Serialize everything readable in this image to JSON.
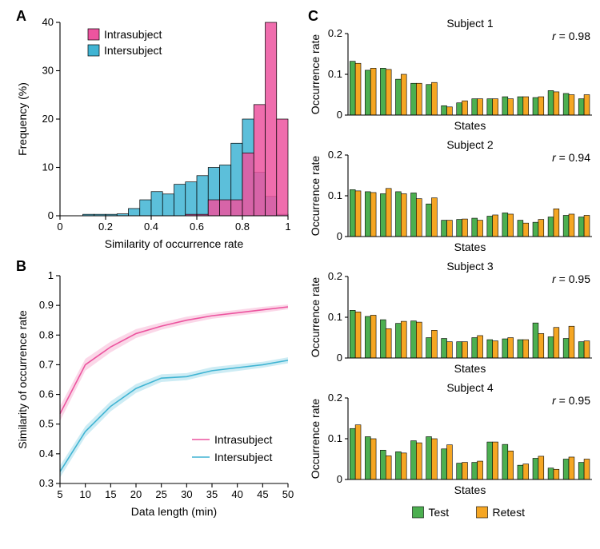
{
  "panelA": {
    "label": "A",
    "type": "histogram",
    "xlabel": "Similarity of occurrence rate",
    "ylabel": "Frequency (%)",
    "xlim": [
      0,
      1
    ],
    "ylim": [
      0,
      40
    ],
    "xtick_step": 0.2,
    "ytick_step": 10,
    "bin_width": 0.05,
    "series": [
      {
        "name": "Intrasubject",
        "color": "#ec549f",
        "values": {
          "0.575": 0.3,
          "0.625": 0.3,
          "0.675": 3.3,
          "0.725": 3.3,
          "0.775": 3.3,
          "0.825": 13,
          "0.875": 23,
          "0.925": 40,
          "0.975": 20
        }
      },
      {
        "name": "Intersubject",
        "color": "#40b4d3",
        "values": {
          "0.125": 0.3,
          "0.175": 0.3,
          "0.225": 0.3,
          "0.275": 0.4,
          "0.325": 1.5,
          "0.375": 3.3,
          "0.425": 5,
          "0.475": 4.5,
          "0.525": 6.5,
          "0.575": 7,
          "0.625": 8.3,
          "0.675": 10,
          "0.725": 10.5,
          "0.775": 15,
          "0.825": 20,
          "0.875": 9,
          "0.925": 4,
          "0.975": 0.3
        }
      }
    ],
    "overlap_color": "#9865b4",
    "opacity": 0.85,
    "stroke": "#000000",
    "stroke_width": 0.7,
    "legend": {
      "position": "top-left-inset",
      "fontsize": 14,
      "box_size": 14
    },
    "label_fontsize": 14,
    "tick_fontsize": 13
  },
  "panelB": {
    "label": "B",
    "type": "line",
    "xlabel": "Data length (min)",
    "ylabel": "Similarity of occurrence rate",
    "xlim": [
      5,
      50
    ],
    "ylim": [
      0.3,
      1.0
    ],
    "xticks": [
      5,
      10,
      15,
      20,
      25,
      30,
      35,
      40,
      45,
      50
    ],
    "yticks": [
      0.3,
      0.4,
      0.5,
      0.6,
      0.7,
      0.8,
      0.9,
      1.0
    ],
    "series": [
      {
        "name": "Intrasubject",
        "color": "#ec549f",
        "band_color": "#f8bcd8",
        "x": [
          5,
          10,
          15,
          20,
          25,
          30,
          35,
          40,
          45,
          50
        ],
        "y": [
          0.535,
          0.7,
          0.76,
          0.805,
          0.83,
          0.85,
          0.865,
          0.875,
          0.885,
          0.895
        ],
        "band": [
          0.025,
          0.02,
          0.018,
          0.015,
          0.012,
          0.012,
          0.01,
          0.01,
          0.01,
          0.008
        ]
      },
      {
        "name": "Intersubject",
        "color": "#40b4d3",
        "band_color": "#ace0ec",
        "x": [
          5,
          10,
          15,
          20,
          25,
          30,
          35,
          40,
          45,
          50
        ],
        "y": [
          0.34,
          0.475,
          0.56,
          0.62,
          0.655,
          0.66,
          0.68,
          0.69,
          0.7,
          0.715
        ],
        "band": [
          0.02,
          0.018,
          0.017,
          0.015,
          0.013,
          0.012,
          0.012,
          0.011,
          0.01,
          0.01
        ]
      }
    ],
    "line_width": 1.6,
    "legend": {
      "position": "bottom-right-inset",
      "fontsize": 14
    },
    "label_fontsize": 14,
    "tick_fontsize": 13
  },
  "panelC": {
    "label": "C",
    "type": "bar",
    "xlabel": "States",
    "ylabel": "Occurrence rate",
    "ylim": [
      0,
      0.2
    ],
    "yticks": [
      0,
      0.1,
      0.2
    ],
    "n_states": 16,
    "bar_width": 0.36,
    "series_colors": {
      "Test": "#4caf50",
      "Retest": "#f5a623"
    },
    "series_stroke": "#000000",
    "series_stroke_width": 0.6,
    "legend": {
      "labels": [
        "Test",
        "Retest"
      ],
      "fontsize": 14,
      "box_size": 14
    },
    "r_label_prefix": "r",
    "label_fontsize": 14,
    "tick_fontsize": 13,
    "title_fontsize": 14,
    "subjects": [
      {
        "title": "Subject 1",
        "r": 0.98,
        "Test": [
          0.132,
          0.11,
          0.115,
          0.088,
          0.078,
          0.075,
          0.023,
          0.03,
          0.04,
          0.04,
          0.045,
          0.045,
          0.043,
          0.06,
          0.053,
          0.04
        ],
        "Retest": [
          0.127,
          0.115,
          0.112,
          0.1,
          0.078,
          0.08,
          0.02,
          0.035,
          0.04,
          0.04,
          0.04,
          0.045,
          0.045,
          0.057,
          0.05,
          0.05
        ]
      },
      {
        "title": "Subject 2",
        "r": 0.94,
        "Test": [
          0.115,
          0.11,
          0.105,
          0.11,
          0.107,
          0.08,
          0.04,
          0.042,
          0.045,
          0.05,
          0.058,
          0.04,
          0.035,
          0.048,
          0.052,
          0.048
        ],
        "Retest": [
          0.112,
          0.108,
          0.118,
          0.105,
          0.093,
          0.095,
          0.04,
          0.043,
          0.04,
          0.053,
          0.055,
          0.033,
          0.042,
          0.068,
          0.055,
          0.052
        ]
      },
      {
        "title": "Subject 3",
        "r": 0.95,
        "Test": [
          0.117,
          0.102,
          0.094,
          0.085,
          0.091,
          0.05,
          0.048,
          0.04,
          0.05,
          0.045,
          0.047,
          0.045,
          0.086,
          0.052,
          0.048,
          0.04
        ],
        "Retest": [
          0.113,
          0.105,
          0.072,
          0.09,
          0.088,
          0.068,
          0.04,
          0.04,
          0.055,
          0.042,
          0.05,
          0.045,
          0.06,
          0.075,
          0.078,
          0.042
        ]
      },
      {
        "title": "Subject 4",
        "r": 0.95,
        "Test": [
          0.125,
          0.105,
          0.072,
          0.068,
          0.095,
          0.105,
          0.075,
          0.04,
          0.042,
          0.092,
          0.086,
          0.035,
          0.052,
          0.028,
          0.05,
          0.042
        ],
        "Retest": [
          0.134,
          0.1,
          0.058,
          0.065,
          0.09,
          0.1,
          0.085,
          0.042,
          0.045,
          0.092,
          0.07,
          0.038,
          0.057,
          0.025,
          0.055,
          0.05
        ]
      }
    ]
  },
  "global": {
    "background_color": "#ffffff",
    "axis_color": "#000000",
    "axis_width": 1.1,
    "panel_label_fontsize": 18,
    "panel_label_weight": "bold"
  }
}
